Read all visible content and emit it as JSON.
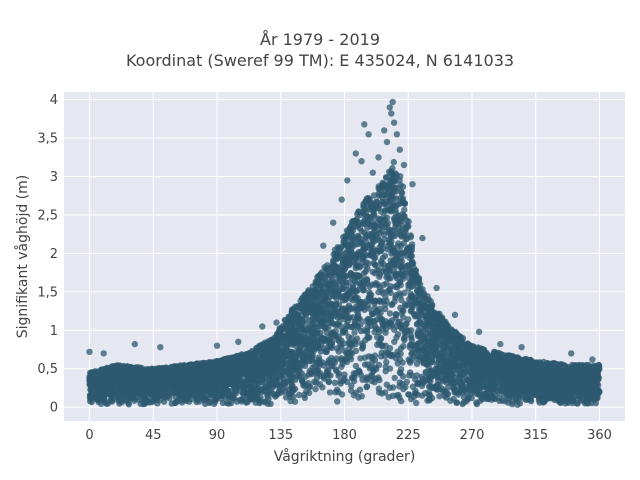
{
  "title_line1": "År 1979 - 2019",
  "title_line2": "Koordinat (Sweref 99 TM): E 435024, N 6141033",
  "chart_data": {
    "type": "scatter",
    "title": "År 1979 - 2019\nKoordinat (Sweref 99 TM): E 435024, N 6141033",
    "xlabel": "Vågriktning (grader)",
    "ylabel": "Signifikant våghöjd (m)",
    "xlim": [
      -18,
      378
    ],
    "ylim": [
      -0.18,
      4.1
    ],
    "xticks": [
      0,
      45,
      90,
      135,
      180,
      225,
      270,
      315,
      360
    ],
    "xtick_labels": [
      "0",
      "45",
      "90",
      "135",
      "180",
      "225",
      "270",
      "315",
      "360"
    ],
    "yticks": [
      0,
      0.5,
      1,
      1.5,
      2,
      2.5,
      3,
      3.5,
      4
    ],
    "ytick_labels": [
      "0",
      "0,5",
      "1",
      "1,5",
      "2",
      "2,5",
      "3",
      "3,5",
      "4"
    ],
    "grid": true,
    "marker_color": "#2e5a70",
    "background_color": "#e5e8f0",
    "envelope": {
      "x": [
        0,
        20,
        45,
        90,
        110,
        130,
        140,
        155,
        165,
        175,
        185,
        195,
        205,
        215,
        220,
        225,
        230,
        240,
        250,
        260,
        270,
        290,
        315,
        340,
        360
      ],
      "y": [
        0.45,
        0.55,
        0.5,
        0.6,
        0.7,
        0.9,
        1.2,
        1.55,
        1.8,
        2.1,
        2.4,
        2.7,
        2.9,
        3.2,
        3.0,
        2.5,
        1.8,
        1.4,
        1.15,
        0.95,
        0.8,
        0.7,
        0.6,
        0.55,
        0.55
      ]
    },
    "outliers": [
      {
        "x": 0,
        "y": 0.72
      },
      {
        "x": 10,
        "y": 0.7
      },
      {
        "x": 32,
        "y": 0.82
      },
      {
        "x": 50,
        "y": 0.78
      },
      {
        "x": 90,
        "y": 0.8
      },
      {
        "x": 105,
        "y": 0.85
      },
      {
        "x": 122,
        "y": 1.05
      },
      {
        "x": 132,
        "y": 1.1
      },
      {
        "x": 165,
        "y": 2.1
      },
      {
        "x": 172,
        "y": 2.4
      },
      {
        "x": 178,
        "y": 2.7
      },
      {
        "x": 182,
        "y": 2.95
      },
      {
        "x": 188,
        "y": 3.3
      },
      {
        "x": 192,
        "y": 3.2
      },
      {
        "x": 194,
        "y": 3.68
      },
      {
        "x": 197,
        "y": 3.55
      },
      {
        "x": 200,
        "y": 3.05
      },
      {
        "x": 204,
        "y": 3.25
      },
      {
        "x": 208,
        "y": 3.6
      },
      {
        "x": 210,
        "y": 3.45
      },
      {
        "x": 212,
        "y": 3.9
      },
      {
        "x": 213,
        "y": 3.82
      },
      {
        "x": 214,
        "y": 3.97
      },
      {
        "x": 215,
        "y": 3.7
      },
      {
        "x": 217,
        "y": 3.55
      },
      {
        "x": 219,
        "y": 3.35
      },
      {
        "x": 222,
        "y": 3.15
      },
      {
        "x": 228,
        "y": 2.9
      },
      {
        "x": 235,
        "y": 2.2
      },
      {
        "x": 245,
        "y": 1.55
      },
      {
        "x": 258,
        "y": 1.2
      },
      {
        "x": 275,
        "y": 0.98
      },
      {
        "x": 290,
        "y": 0.82
      },
      {
        "x": 305,
        "y": 0.78
      },
      {
        "x": 340,
        "y": 0.7
      },
      {
        "x": 355,
        "y": 0.62
      }
    ]
  }
}
